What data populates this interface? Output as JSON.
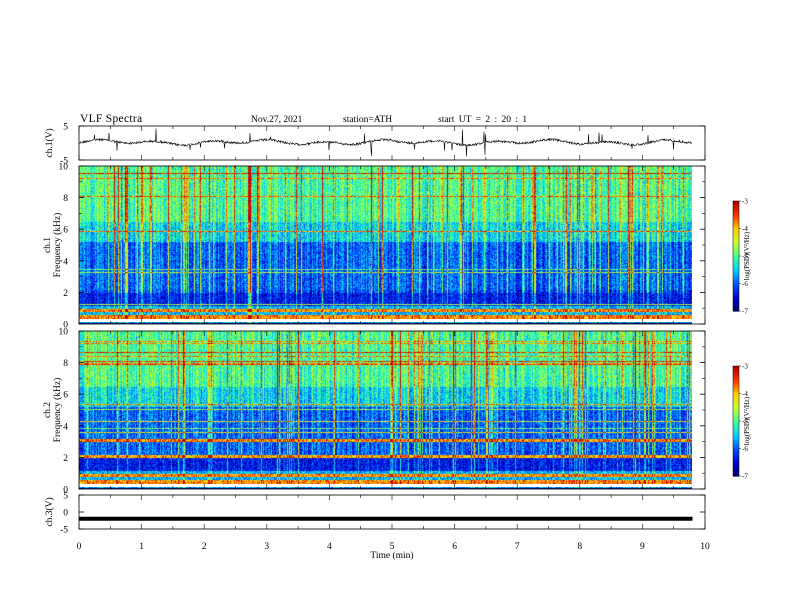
{
  "header": {
    "title": "VLF  Spectra",
    "date": "Nov.27, 2021",
    "station": "station=ATH",
    "start_time": "start  UT  =   2  : 20 : 1"
  },
  "chart_data": [
    {
      "type": "line",
      "panel": "ch1-waveform",
      "ylabel": "ch.1(V)",
      "ylim": [
        -5,
        5
      ],
      "yticks": [
        "5",
        "-5"
      ],
      "xlim": [
        0,
        10
      ],
      "data_end_min": 9.8,
      "baseline": 0.2,
      "series": [
        {
          "values_description": "noisy waveform around 0 V with spikes up to ~±3 V"
        }
      ]
    },
    {
      "type": "heatmap",
      "panel": "ch1-spectrogram",
      "ylabel_line1": "ch.1",
      "ylabel_line2": "Frequency (kHz)",
      "ylim": [
        0,
        10
      ],
      "yticks": [
        "0",
        "2",
        "4",
        "6",
        "8",
        "10"
      ],
      "xlim": [
        0,
        10
      ],
      "data_end_min": 9.8,
      "colorbar": {
        "label": "log(PSD)(V²/Hz)",
        "range": [
          -7,
          -3
        ],
        "ticks": [
          "-3",
          "-4",
          "-5",
          "-6",
          "-7"
        ]
      }
    },
    {
      "type": "heatmap",
      "panel": "ch2-spectrogram",
      "ylabel_line1": "ch.2",
      "ylabel_line2": "Frequency (kHz)",
      "ylim": [
        0,
        10
      ],
      "yticks": [
        "0",
        "2",
        "4",
        "6",
        "8",
        "10"
      ],
      "xlim": [
        0,
        10
      ],
      "data_end_min": 9.8,
      "colorbar": {
        "label": "log(PSD)(V²/Hz)",
        "range": [
          -7,
          -3
        ],
        "ticks": [
          "-3",
          "-4",
          "-5",
          "-6",
          "-7"
        ]
      }
    },
    {
      "type": "line",
      "panel": "ch3-waveform",
      "ylabel": "ch.3(V)",
      "ylim": [
        -5,
        5
      ],
      "yticks": [
        "5",
        "0",
        "-5"
      ],
      "xlim": [
        0,
        10
      ],
      "data_end_min": 9.8,
      "series": [
        {
          "constant_value": -2
        }
      ]
    }
  ],
  "x_axis": {
    "label": "Time  (min)",
    "ticks": [
      "0",
      "1",
      "2",
      "3",
      "4",
      "5",
      "6",
      "7",
      "8",
      "9",
      "10"
    ]
  },
  "colormap": [
    "#000066",
    "#0000d0",
    "#0050ff",
    "#00d0ff",
    "#40ff90",
    "#c8ff30",
    "#ffd000",
    "#ff3000",
    "#b00000",
    "#ffffff"
  ]
}
